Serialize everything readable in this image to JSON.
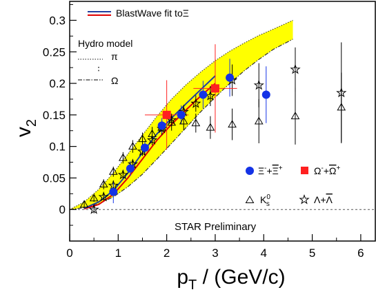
{
  "chart_data": {
    "type": "scatter",
    "title": "",
    "xlabel": "p",
    "xlabel_sub": "T",
    "xlabel_unit": " / (GeV/c)",
    "ylabel": "v",
    "ylabel_sub": "2",
    "xlim": [
      0,
      6.3
    ],
    "ylim": [
      -0.05,
      0.33
    ],
    "x_ticks": [
      0,
      1,
      2,
      3,
      4,
      5,
      6
    ],
    "x_tick_labels": [
      "0",
      "1",
      "2",
      "3",
      "4",
      "5",
      "6"
    ],
    "y_ticks": [
      0,
      0.05,
      0.1,
      0.15,
      0.2,
      0.25,
      0.3
    ],
    "y_tick_labels": [
      "0",
      "0.05",
      "0.1",
      "0.15",
      "0.2",
      "0.25",
      "0.3"
    ],
    "grid": false,
    "annotation": "STAR Preliminary",
    "hydro": {
      "heading": "Hydro model",
      "pion_label": "π",
      "omega_label": "Ω",
      "band_color": "#ffff00",
      "pion_curve": [
        [
          0,
          0
        ],
        [
          0.3,
          0.012
        ],
        [
          0.6,
          0.032
        ],
        [
          0.9,
          0.058
        ],
        [
          1.2,
          0.088
        ],
        [
          1.5,
          0.118
        ],
        [
          1.8,
          0.148
        ],
        [
          2.1,
          0.175
        ],
        [
          2.4,
          0.198
        ],
        [
          2.7,
          0.218
        ],
        [
          3.0,
          0.236
        ],
        [
          3.3,
          0.251
        ],
        [
          3.6,
          0.264
        ],
        [
          3.9,
          0.276
        ],
        [
          4.2,
          0.286
        ],
        [
          4.6,
          0.3
        ]
      ],
      "omega_curve": [
        [
          0,
          0
        ],
        [
          0.3,
          0.003
        ],
        [
          0.6,
          0.009
        ],
        [
          0.9,
          0.02
        ],
        [
          1.2,
          0.036
        ],
        [
          1.5,
          0.056
        ],
        [
          1.8,
          0.08
        ],
        [
          2.1,
          0.105
        ],
        [
          2.4,
          0.13
        ],
        [
          2.7,
          0.155
        ],
        [
          3.0,
          0.178
        ],
        [
          3.3,
          0.2
        ],
        [
          3.6,
          0.22
        ],
        [
          3.9,
          0.238
        ],
        [
          4.2,
          0.254
        ],
        [
          4.6,
          0.27
        ]
      ]
    },
    "blastwave": {
      "label": "BlastWave fit to",
      "label_particle": "Ξ",
      "blue_color": "#1f3fa0",
      "red_color": "#e00000",
      "blue_curve": [
        [
          0.3,
          0.002
        ],
        [
          0.6,
          0.012
        ],
        [
          0.9,
          0.03
        ],
        [
          1.2,
          0.058
        ],
        [
          1.5,
          0.09
        ],
        [
          1.8,
          0.12
        ],
        [
          2.1,
          0.145
        ],
        [
          2.4,
          0.168
        ],
        [
          2.7,
          0.19
        ],
        [
          3.0,
          0.212
        ]
      ],
      "red_curve": [
        [
          0.3,
          0.001
        ],
        [
          0.6,
          0.008
        ],
        [
          0.9,
          0.024
        ],
        [
          1.2,
          0.05
        ],
        [
          1.5,
          0.08
        ],
        [
          1.8,
          0.11
        ],
        [
          2.1,
          0.135
        ],
        [
          2.4,
          0.158
        ],
        [
          2.7,
          0.18
        ],
        [
          3.0,
          0.2
        ]
      ]
    },
    "series": [
      {
        "name": "Ξ⁻+Ξ̄⁺",
        "legend_main": "Ξ",
        "legend_sup1": "-",
        "legend_plus": "+",
        "legend_bar": "Ξ",
        "legend_sup2": "+",
        "marker": "circle",
        "color": "#1433e6",
        "points": [
          {
            "x": 0.9,
            "y": 0.028,
            "err": 0.018
          },
          {
            "x": 1.25,
            "y": 0.065,
            "err": 0.012
          },
          {
            "x": 1.55,
            "y": 0.098,
            "err": 0.01
          },
          {
            "x": 1.9,
            "y": 0.133,
            "err": 0.012
          },
          {
            "x": 2.3,
            "y": 0.15,
            "err": 0.015
          },
          {
            "x": 2.75,
            "y": 0.182,
            "err": 0.022
          },
          {
            "x": 3.3,
            "y": 0.209,
            "err": 0.03
          },
          {
            "x": 4.05,
            "y": 0.182,
            "err": 0.045
          }
        ]
      },
      {
        "name": "Ω⁻+Ω̄⁺",
        "legend_main": "Ω",
        "legend_sup1": "-",
        "legend_plus": "+",
        "legend_bar": "Ω",
        "legend_sup2": "+",
        "marker": "square",
        "color": "#ff2020",
        "points": [
          {
            "x": 2.0,
            "y": 0.15,
            "err": 0.055,
            "xerr": 0.45
          },
          {
            "x": 3.0,
            "y": 0.192,
            "err": 0.07,
            "xerr": 0.45
          }
        ]
      },
      {
        "name": "K⁰s",
        "legend_main": "K",
        "legend_sup1": "0",
        "legend_sub": "s",
        "marker": "triangle-open",
        "color": "#000000",
        "points": [
          {
            "x": 0.3,
            "y": 0.008,
            "err": 0.006
          },
          {
            "x": 0.5,
            "y": 0.018,
            "err": 0.006
          },
          {
            "x": 0.7,
            "y": 0.04,
            "err": 0.008
          },
          {
            "x": 0.9,
            "y": 0.06,
            "err": 0.008
          },
          {
            "x": 1.1,
            "y": 0.082,
            "err": 0.009
          },
          {
            "x": 1.3,
            "y": 0.1,
            "err": 0.01
          },
          {
            "x": 1.5,
            "y": 0.112,
            "err": 0.01
          },
          {
            "x": 1.7,
            "y": 0.12,
            "err": 0.011
          },
          {
            "x": 1.9,
            "y": 0.13,
            "err": 0.012
          },
          {
            "x": 2.1,
            "y": 0.138,
            "err": 0.013
          },
          {
            "x": 2.35,
            "y": 0.14,
            "err": 0.014
          },
          {
            "x": 2.6,
            "y": 0.137,
            "err": 0.015
          },
          {
            "x": 2.9,
            "y": 0.13,
            "err": 0.018
          },
          {
            "x": 3.35,
            "y": 0.135,
            "err": 0.025
          },
          {
            "x": 3.9,
            "y": 0.14,
            "err": 0.035
          },
          {
            "x": 4.65,
            "y": 0.148,
            "err": 0.045
          },
          {
            "x": 5.6,
            "y": 0.162,
            "err": 0.055
          }
        ]
      },
      {
        "name": "Λ+Λ̄",
        "legend_main": "Λ",
        "legend_plus": "+",
        "legend_bar": "Λ",
        "marker": "star-open",
        "color": "#000000",
        "points": [
          {
            "x": 0.5,
            "y": 0.0,
            "err": 0.006
          },
          {
            "x": 0.7,
            "y": 0.02,
            "err": 0.006
          },
          {
            "x": 0.9,
            "y": 0.038,
            "err": 0.006
          },
          {
            "x": 1.1,
            "y": 0.055,
            "err": 0.006
          },
          {
            "x": 1.3,
            "y": 0.072,
            "err": 0.007
          },
          {
            "x": 1.5,
            "y": 0.092,
            "err": 0.007
          },
          {
            "x": 1.7,
            "y": 0.11,
            "err": 0.008
          },
          {
            "x": 1.9,
            "y": 0.128,
            "err": 0.009
          },
          {
            "x": 2.1,
            "y": 0.142,
            "err": 0.01
          },
          {
            "x": 2.35,
            "y": 0.155,
            "err": 0.011
          },
          {
            "x": 2.6,
            "y": 0.168,
            "err": 0.013
          },
          {
            "x": 2.9,
            "y": 0.18,
            "err": 0.016
          },
          {
            "x": 3.35,
            "y": 0.205,
            "err": 0.025
          },
          {
            "x": 3.9,
            "y": 0.197,
            "err": 0.035
          },
          {
            "x": 4.65,
            "y": 0.222,
            "err": 0.035
          },
          {
            "x": 5.6,
            "y": 0.185,
            "err": 0.08
          }
        ]
      }
    ]
  }
}
